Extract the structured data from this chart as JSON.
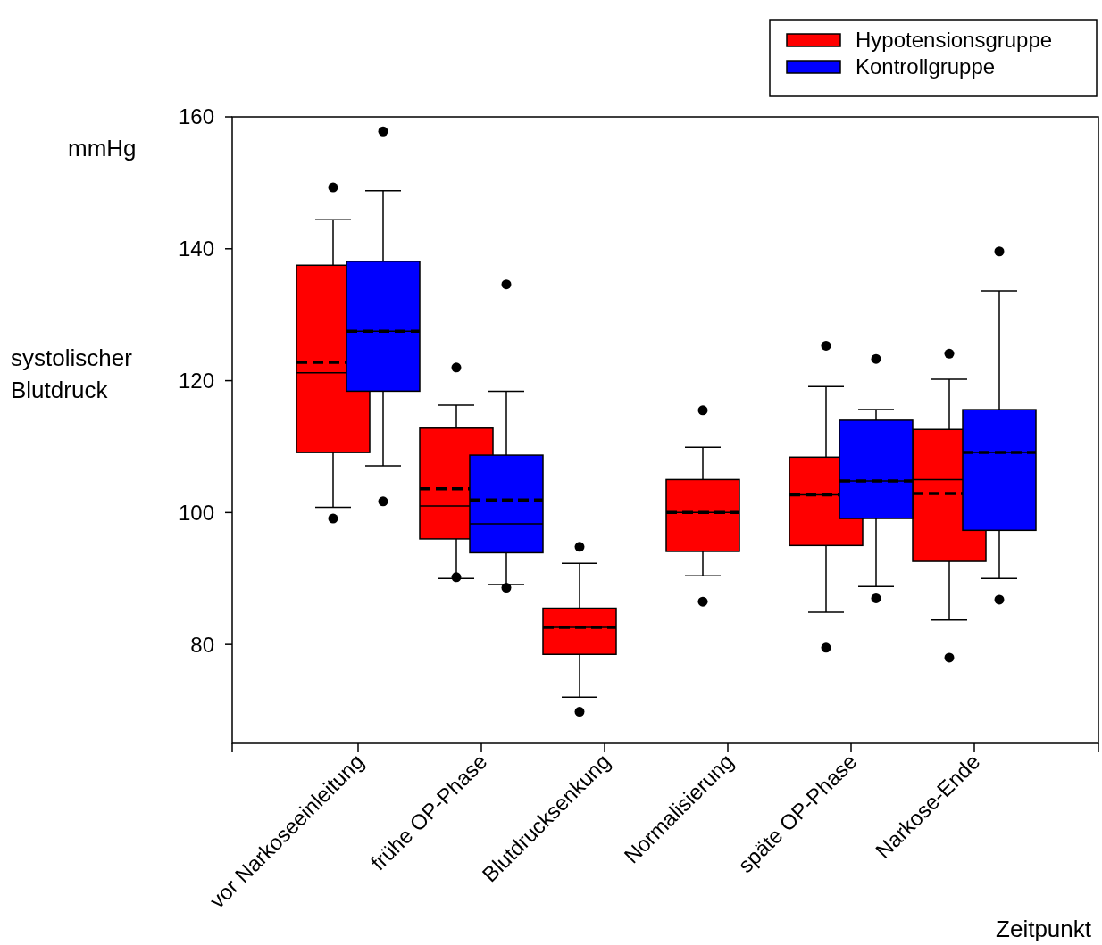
{
  "chart_data": {
    "type": "box",
    "ylabel": "systolischer Blutdruck",
    "xlabel": "Zeitpunkt",
    "annotations": [
      "mmHg"
    ],
    "categories": [
      "vor Narkoseeinleitung",
      "frühe OP-Phase",
      "Blutdrucksenkung",
      "Normalisierung",
      "späte OP-Phase",
      "Narkose-Ende"
    ],
    "ylim": [
      65,
      160
    ],
    "yticks": [
      80,
      100,
      120,
      140,
      160
    ],
    "legend": "top right",
    "grid": false,
    "series": [
      {
        "name": "Hypotensionsgruppe",
        "color": "#ff0000",
        "boxes": [
          {
            "low": 100.8,
            "q1": 109.1,
            "median": 121.2,
            "q3": 137.5,
            "high": 144.4,
            "mean": 122.8,
            "outliers": [
              149.3,
              99.1
            ]
          },
          {
            "low": 90.0,
            "q1": 96.0,
            "median": 101.0,
            "q3": 112.8,
            "high": 116.3,
            "mean": 103.6,
            "outliers": [
              122.0,
              90.2
            ]
          },
          {
            "low": 72.0,
            "q1": 78.5,
            "median": 82.6,
            "q3": 85.5,
            "high": 92.3,
            "mean": 82.6,
            "outliers": [
              94.8,
              69.8
            ]
          },
          {
            "low": 90.4,
            "q1": 94.1,
            "median": 100.0,
            "q3": 105.0,
            "high": 109.9,
            "mean": 100.0,
            "outliers": [
              115.5,
              86.5
            ]
          },
          {
            "low": 84.9,
            "q1": 95.0,
            "median": 102.7,
            "q3": 108.4,
            "high": 119.1,
            "mean": 102.7,
            "outliers": [
              125.3,
              79.5
            ]
          },
          {
            "low": 83.7,
            "q1": 92.6,
            "median": 105.0,
            "q3": 112.6,
            "high": 120.2,
            "mean": 102.9,
            "outliers": [
              124.1,
              78.0
            ]
          }
        ]
      },
      {
        "name": "Kontrollgruppe",
        "color": "#0000ff",
        "boxes": [
          {
            "low": 107.1,
            "q1": 118.4,
            "median": 127.5,
            "q3": 138.1,
            "high": 148.8,
            "mean": 127.5,
            "outliers": [
              157.8,
              101.7
            ]
          },
          {
            "low": 89.1,
            "q1": 93.9,
            "median": 98.3,
            "q3": 108.7,
            "high": 118.4,
            "mean": 101.9,
            "outliers": [
              134.6,
              88.6
            ]
          },
          null,
          null,
          {
            "low": 88.8,
            "q1": 99.1,
            "median": 104.8,
            "q3": 114.0,
            "high": 115.6,
            "mean": 104.8,
            "outliers": [
              123.3,
              87.0
            ]
          },
          {
            "low": 90.0,
            "q1": 97.3,
            "median": 109.1,
            "q3": 115.6,
            "high": 133.6,
            "mean": 109.1,
            "outliers": [
              139.6,
              86.8
            ]
          }
        ]
      }
    ]
  }
}
